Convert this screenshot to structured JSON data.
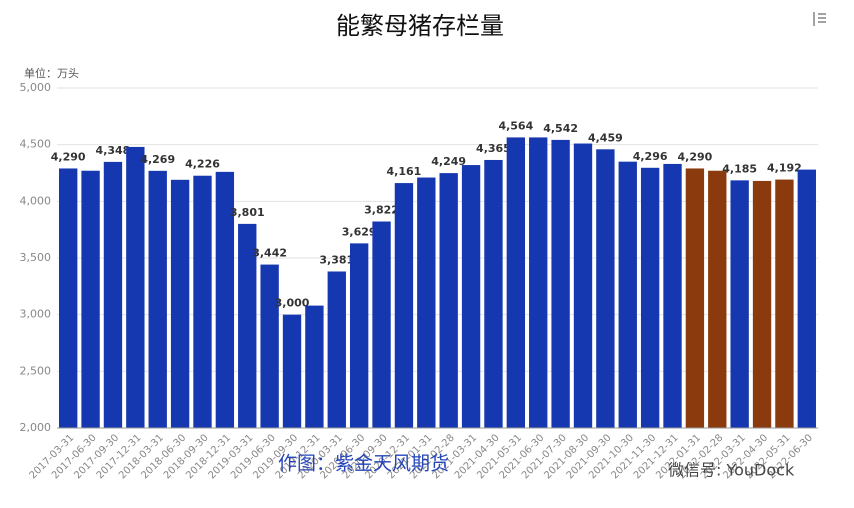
{
  "chart_data": {
    "type": "bar",
    "title": "能繁母猪存栏量",
    "unit_label": "单位：万头",
    "categories": [
      "2017-03-31",
      "2017-06-30",
      "2017-09-30",
      "2017-12-31",
      "2018-03-31",
      "2018-06-30",
      "2018-09-30",
      "2018-12-31",
      "2019-03-31",
      "2019-06-30",
      "2019-09-30",
      "2019-12-31",
      "2020-03-31",
      "2020-06-30",
      "2020-09-30",
      "2020-12-31",
      "2021-01-31",
      "2021-02-28",
      "2021-03-31",
      "2021-04-30",
      "2021-05-31",
      "2021-06-30",
      "2021-07-30",
      "2021-08-30",
      "2021-09-30",
      "2021-10-30",
      "2021-11-30",
      "2021-12-31",
      "2022-01-31",
      "2022-02-28",
      "2022-03-31",
      "2022-04-30",
      "2022-05-31",
      "2022-06-30"
    ],
    "values": [
      4290,
      4270,
      4348,
      4480,
      4269,
      4190,
      4226,
      4260,
      3801,
      3442,
      3000,
      3080,
      3381,
      3629,
      3822,
      4161,
      4210,
      4249,
      4320,
      4365,
      4564,
      4564,
      4542,
      4510,
      4459,
      4350,
      4296,
      4330,
      4290,
      4270,
      4185,
      4180,
      4192,
      4280
    ],
    "value_labels": [
      "4,290",
      null,
      "4,348",
      null,
      "4,269",
      null,
      "4,226",
      null,
      "3,801",
      "3,442",
      "3,000",
      null,
      "3,381",
      "3,629",
      "3,822",
      "4,161",
      null,
      "4,249",
      null,
      "4,365",
      "4,564",
      null,
      "4,542",
      null,
      "4,459",
      null,
      "4,296",
      null,
      "4,290",
      null,
      "4,185",
      null,
      "4,192",
      null
    ],
    "colors": [
      "#1537b0",
      "#1537b0",
      "#1537b0",
      "#1537b0",
      "#1537b0",
      "#1537b0",
      "#1537b0",
      "#1537b0",
      "#1537b0",
      "#1537b0",
      "#1537b0",
      "#1537b0",
      "#1537b0",
      "#1537b0",
      "#1537b0",
      "#1537b0",
      "#1537b0",
      "#1537b0",
      "#1537b0",
      "#1537b0",
      "#1537b0",
      "#1537b0",
      "#1537b0",
      "#1537b0",
      "#1537b0",
      "#1537b0",
      "#1537b0",
      "#1537b0",
      "#8b3a0e",
      "#8b3a0e",
      "#1537b0",
      "#8b3a0e",
      "#8b3a0e",
      "#1537b0"
    ],
    "ylim": [
      2000,
      5000
    ],
    "yticks": [
      {
        "value": 2000,
        "label": "2,000"
      },
      {
        "value": 2500,
        "label": "2,500"
      },
      {
        "value": 3000,
        "label": "3,000"
      },
      {
        "value": 3500,
        "label": "3,500"
      },
      {
        "value": 4000,
        "label": "4,000"
      },
      {
        "value": 4500,
        "label": "4,500"
      },
      {
        "value": 5000,
        "label": "5,000"
      }
    ],
    "grid": true,
    "annotations": [
      "作图：紫金天风期货",
      "微信号: YouDock"
    ]
  }
}
